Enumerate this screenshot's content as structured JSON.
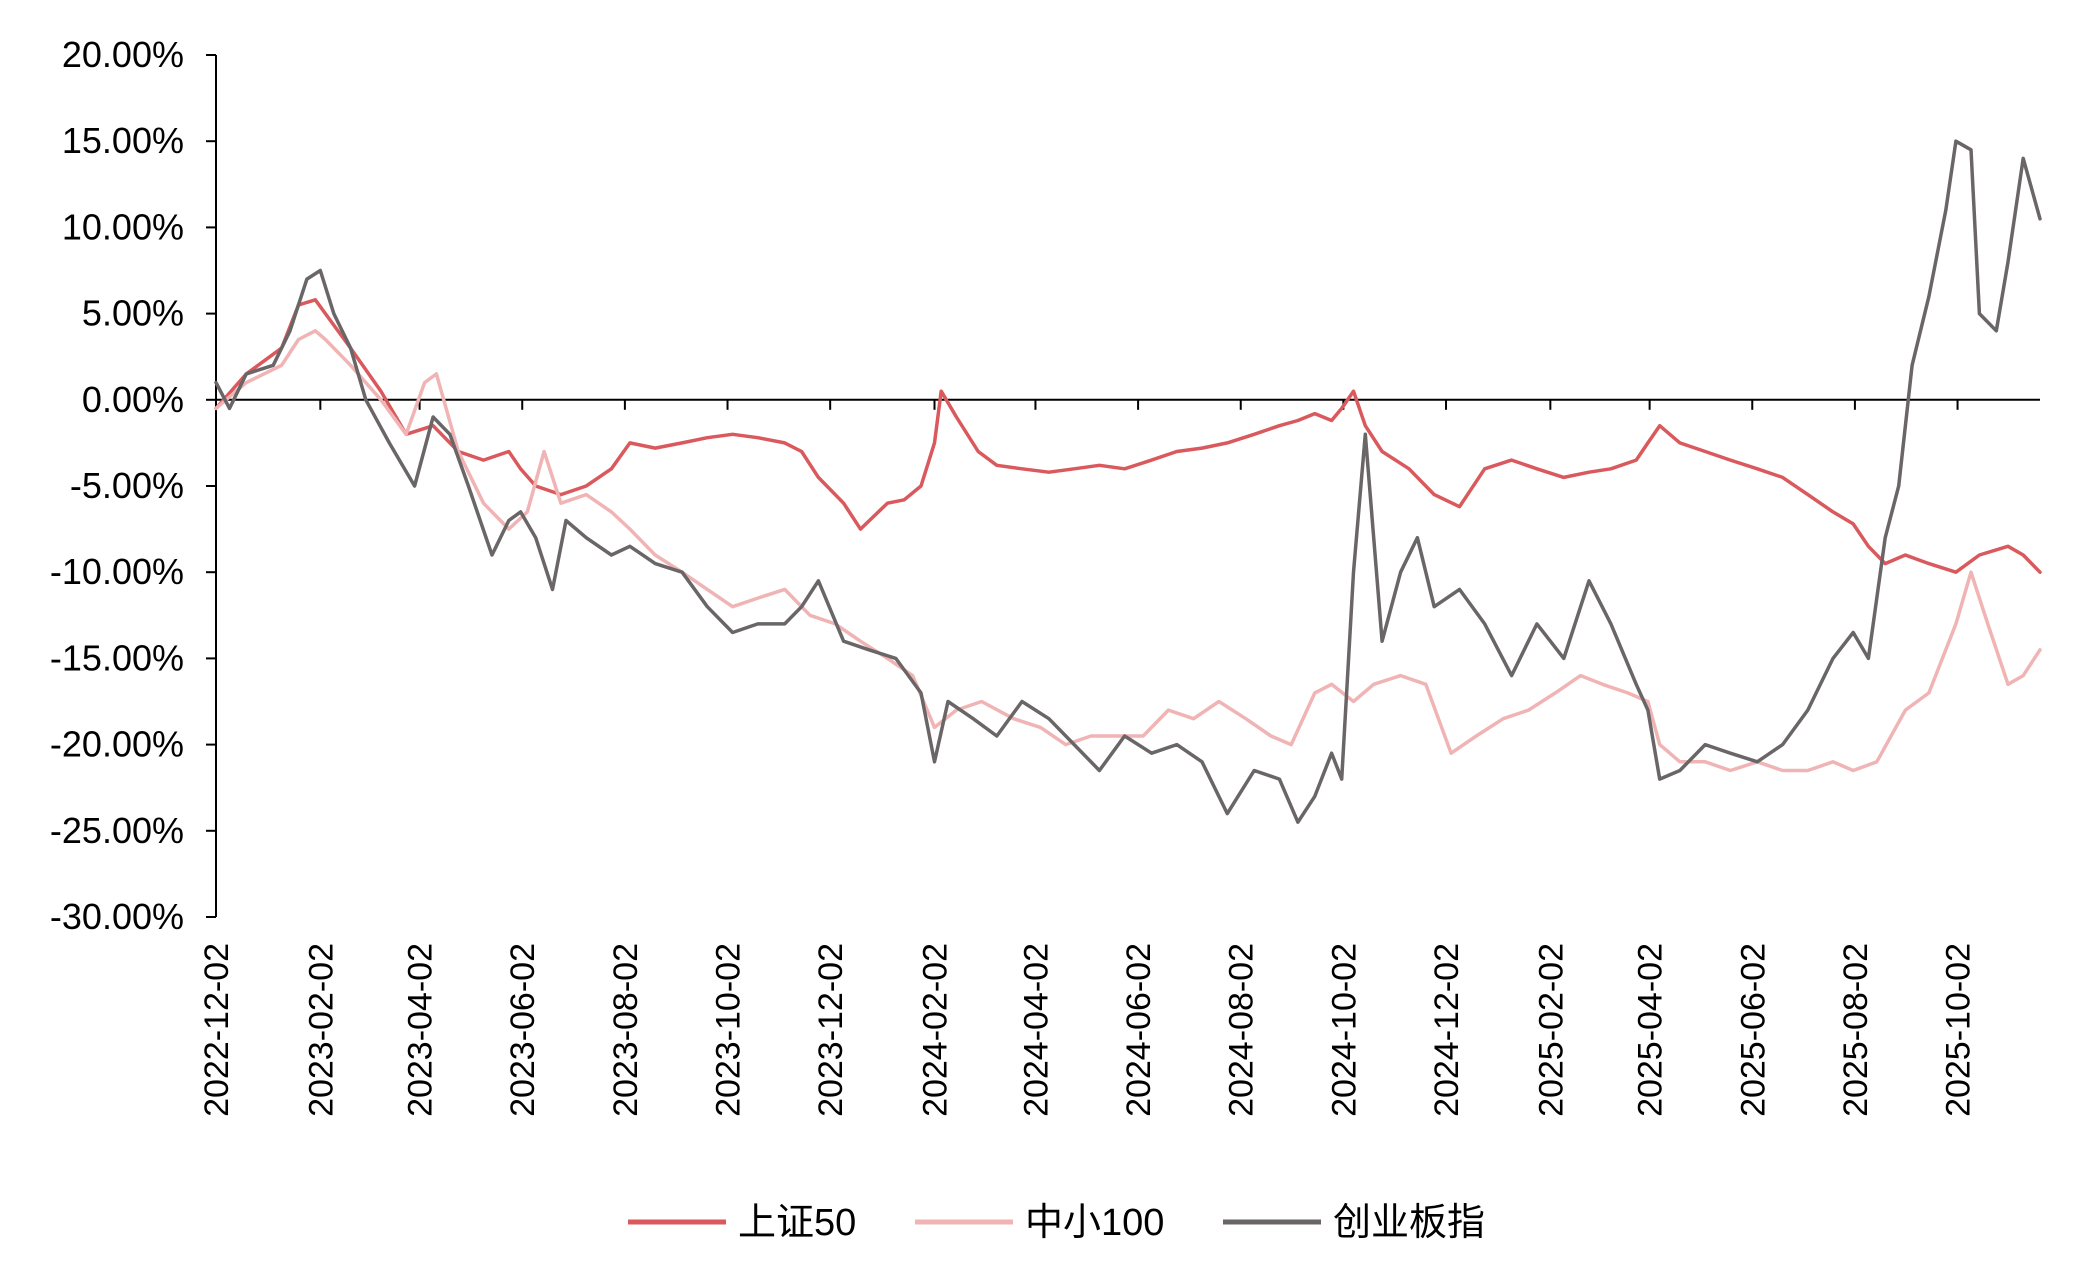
{
  "chart_data": {
    "type": "line",
    "title": "",
    "xlabel": "",
    "ylabel": "",
    "ylim": [
      -0.3,
      0.2
    ],
    "yticks": [
      0.2,
      0.15,
      0.1,
      0.05,
      0.0,
      -0.05,
      -0.1,
      -0.15,
      -0.2,
      -0.25,
      -0.3
    ],
    "ytick_labels": [
      "20.00%",
      "15.00%",
      "10.00%",
      "5.00%",
      "0.00%",
      "-5.00%",
      "-10.00%",
      "-15.00%",
      "-20.00%",
      "-25.00%",
      "-30.00%"
    ],
    "xlim": [
      "2022-12-02",
      "2025-11-20"
    ],
    "xtick_labels": [
      "2022-12-02",
      "2023-02-02",
      "2023-04-02",
      "2023-06-02",
      "2023-08-02",
      "2023-10-02",
      "2023-12-02",
      "2024-02-02",
      "2024-04-02",
      "2024-06-02",
      "2024-08-02",
      "2024-10-02",
      "2024-12-02",
      "2025-02-02",
      "2025-04-02",
      "2025-06-02",
      "2025-08-02",
      "2025-10-02"
    ],
    "legend_position": "bottom",
    "series": [
      {
        "name": "上证50",
        "color": "#d9595c",
        "x": [
          "2022-12-02",
          "2022-12-20",
          "2023-01-10",
          "2023-01-20",
          "2023-01-30",
          "2023-02-05",
          "2023-02-20",
          "2023-03-10",
          "2023-03-25",
          "2023-04-10",
          "2023-04-25",
          "2023-05-10",
          "2023-05-25",
          "2023-06-01",
          "2023-06-10",
          "2023-06-25",
          "2023-07-10",
          "2023-07-25",
          "2023-08-05",
          "2023-08-20",
          "2023-09-05",
          "2023-09-20",
          "2023-10-05",
          "2023-10-20",
          "2023-11-05",
          "2023-11-15",
          "2023-11-25",
          "2023-12-10",
          "2023-12-20",
          "2024-01-05",
          "2024-01-15",
          "2024-01-25",
          "2024-02-02",
          "2024-02-06",
          "2024-02-15",
          "2024-02-28",
          "2024-03-10",
          "2024-03-25",
          "2024-04-10",
          "2024-04-25",
          "2024-05-10",
          "2024-05-25",
          "2024-06-10",
          "2024-06-25",
          "2024-07-10",
          "2024-07-25",
          "2024-08-10",
          "2024-08-25",
          "2024-09-05",
          "2024-09-15",
          "2024-09-25",
          "2024-10-01",
          "2024-10-08",
          "2024-10-15",
          "2024-10-25",
          "2024-11-10",
          "2024-11-25",
          "2024-12-10",
          "2024-12-25",
          "2025-01-10",
          "2025-01-25",
          "2025-02-10",
          "2025-02-25",
          "2025-03-10",
          "2025-03-25",
          "2025-04-01",
          "2025-04-08",
          "2025-04-20",
          "2025-05-05",
          "2025-05-20",
          "2025-06-05",
          "2025-06-20",
          "2025-07-05",
          "2025-07-20",
          "2025-08-01",
          "2025-08-10",
          "2025-08-20",
          "2025-09-01",
          "2025-09-15",
          "2025-10-01",
          "2025-10-15",
          "2025-11-01",
          "2025-11-10",
          "2025-11-20"
        ],
        "values": [
          -0.005,
          0.015,
          0.03,
          0.055,
          0.058,
          0.05,
          0.03,
          0.005,
          -0.02,
          -0.015,
          -0.03,
          -0.035,
          -0.03,
          -0.04,
          -0.05,
          -0.055,
          -0.05,
          -0.04,
          -0.025,
          -0.028,
          -0.025,
          -0.022,
          -0.02,
          -0.022,
          -0.025,
          -0.03,
          -0.045,
          -0.06,
          -0.075,
          -0.06,
          -0.058,
          -0.05,
          -0.025,
          0.005,
          -0.01,
          -0.03,
          -0.038,
          -0.04,
          -0.042,
          -0.04,
          -0.038,
          -0.04,
          -0.035,
          -0.03,
          -0.028,
          -0.025,
          -0.02,
          -0.015,
          -0.012,
          -0.008,
          -0.012,
          -0.005,
          0.005,
          -0.015,
          -0.03,
          -0.04,
          -0.055,
          -0.062,
          -0.04,
          -0.035,
          -0.04,
          -0.045,
          -0.042,
          -0.04,
          -0.035,
          -0.025,
          -0.015,
          -0.025,
          -0.03,
          -0.035,
          -0.04,
          -0.045,
          -0.055,
          -0.065,
          -0.072,
          -0.085,
          -0.095,
          -0.09,
          -0.095,
          -0.1,
          -0.09,
          -0.085,
          -0.09,
          -0.1
        ]
      },
      {
        "name": "中小100",
        "color": "#f0b4b5",
        "x": [
          "2022-12-02",
          "2022-12-20",
          "2023-01-10",
          "2023-01-20",
          "2023-01-30",
          "2023-02-05",
          "2023-02-20",
          "2023-03-10",
          "2023-03-25",
          "2023-04-05",
          "2023-04-12",
          "2023-04-25",
          "2023-05-10",
          "2023-05-25",
          "2023-06-05",
          "2023-06-15",
          "2023-06-25",
          "2023-07-10",
          "2023-07-25",
          "2023-08-05",
          "2023-08-20",
          "2023-09-05",
          "2023-09-20",
          "2023-10-05",
          "2023-10-20",
          "2023-11-05",
          "2023-11-20",
          "2023-12-05",
          "2023-12-20",
          "2024-01-05",
          "2024-01-20",
          "2024-02-02",
          "2024-02-15",
          "2024-03-01",
          "2024-03-20",
          "2024-04-05",
          "2024-04-20",
          "2024-05-05",
          "2024-05-20",
          "2024-06-05",
          "2024-06-20",
          "2024-07-05",
          "2024-07-20",
          "2024-08-05",
          "2024-08-20",
          "2024-09-01",
          "2024-09-15",
          "2024-09-25",
          "2024-10-08",
          "2024-10-20",
          "2024-11-05",
          "2024-11-20",
          "2024-12-05",
          "2024-12-20",
          "2025-01-05",
          "2025-01-20",
          "2025-02-05",
          "2025-02-20",
          "2025-03-05",
          "2025-03-20",
          "2025-04-01",
          "2025-04-08",
          "2025-04-20",
          "2025-05-05",
          "2025-05-20",
          "2025-06-05",
          "2025-06-20",
          "2025-07-05",
          "2025-07-20",
          "2025-08-01",
          "2025-08-15",
          "2025-09-01",
          "2025-09-15",
          "2025-10-01",
          "2025-10-10",
          "2025-10-20",
          "2025-11-01",
          "2025-11-10",
          "2025-11-20"
        ],
        "values": [
          -0.005,
          0.01,
          0.02,
          0.035,
          0.04,
          0.035,
          0.02,
          0.0,
          -0.02,
          0.01,
          0.015,
          -0.03,
          -0.06,
          -0.075,
          -0.065,
          -0.03,
          -0.06,
          -0.055,
          -0.065,
          -0.075,
          -0.09,
          -0.1,
          -0.11,
          -0.12,
          -0.115,
          -0.11,
          -0.125,
          -0.13,
          -0.14,
          -0.15,
          -0.16,
          -0.19,
          -0.18,
          -0.175,
          -0.185,
          -0.19,
          -0.2,
          -0.195,
          -0.195,
          -0.195,
          -0.18,
          -0.185,
          -0.175,
          -0.185,
          -0.195,
          -0.2,
          -0.17,
          -0.165,
          -0.175,
          -0.165,
          -0.16,
          -0.165,
          -0.205,
          -0.195,
          -0.185,
          -0.18,
          -0.17,
          -0.16,
          -0.165,
          -0.17,
          -0.175,
          -0.2,
          -0.21,
          -0.21,
          -0.215,
          -0.21,
          -0.215,
          -0.215,
          -0.21,
          -0.215,
          -0.21,
          -0.18,
          -0.17,
          -0.13,
          -0.1,
          -0.13,
          -0.165,
          -0.16,
          -0.145
        ]
      },
      {
        "name": "创业板指",
        "color": "#6a6668",
        "x": [
          "2022-12-02",
          "2022-12-10",
          "2022-12-20",
          "2023-01-05",
          "2023-01-15",
          "2023-01-25",
          "2023-02-02",
          "2023-02-10",
          "2023-02-20",
          "2023-03-01",
          "2023-03-15",
          "2023-03-30",
          "2023-04-10",
          "2023-04-20",
          "2023-05-01",
          "2023-05-15",
          "2023-05-25",
          "2023-06-01",
          "2023-06-10",
          "2023-06-20",
          "2023-06-28",
          "2023-07-10",
          "2023-07-25",
          "2023-08-05",
          "2023-08-20",
          "2023-09-05",
          "2023-09-20",
          "2023-10-05",
          "2023-10-20",
          "2023-11-05",
          "2023-11-15",
          "2023-11-25",
          "2023-12-10",
          "2023-12-25",
          "2024-01-10",
          "2024-01-25",
          "2024-02-02",
          "2024-02-10",
          "2024-02-25",
          "2024-03-10",
          "2024-03-25",
          "2024-04-10",
          "2024-04-25",
          "2024-05-10",
          "2024-05-25",
          "2024-06-10",
          "2024-06-25",
          "2024-07-10",
          "2024-07-25",
          "2024-08-10",
          "2024-08-25",
          "2024-09-05",
          "2024-09-15",
          "2024-09-25",
          "2024-10-01",
          "2024-10-08",
          "2024-10-15",
          "2024-10-25",
          "2024-11-05",
          "2024-11-15",
          "2024-11-25",
          "2024-12-10",
          "2024-12-25",
          "2025-01-10",
          "2025-01-25",
          "2025-02-10",
          "2025-02-25",
          "2025-03-10",
          "2025-03-25",
          "2025-04-01",
          "2025-04-08",
          "2025-04-20",
          "2025-05-05",
          "2025-05-20",
          "2025-06-05",
          "2025-06-20",
          "2025-07-05",
          "2025-07-20",
          "2025-08-01",
          "2025-08-10",
          "2025-08-20",
          "2025-08-28",
          "2025-09-05",
          "2025-09-15",
          "2025-09-25",
          "2025-10-01",
          "2025-10-10",
          "2025-10-15",
          "2025-10-25",
          "2025-11-01",
          "2025-11-10",
          "2025-11-20"
        ],
        "values": [
          0.01,
          -0.005,
          0.015,
          0.02,
          0.04,
          0.07,
          0.075,
          0.05,
          0.03,
          0.0,
          -0.025,
          -0.05,
          -0.01,
          -0.02,
          -0.05,
          -0.09,
          -0.07,
          -0.065,
          -0.08,
          -0.11,
          -0.07,
          -0.08,
          -0.09,
          -0.085,
          -0.095,
          -0.1,
          -0.12,
          -0.135,
          -0.13,
          -0.13,
          -0.12,
          -0.105,
          -0.14,
          -0.145,
          -0.15,
          -0.17,
          -0.21,
          -0.175,
          -0.185,
          -0.195,
          -0.175,
          -0.185,
          -0.2,
          -0.215,
          -0.195,
          -0.205,
          -0.2,
          -0.21,
          -0.24,
          -0.215,
          -0.22,
          -0.245,
          -0.23,
          -0.205,
          -0.22,
          -0.1,
          -0.02,
          -0.14,
          -0.1,
          -0.08,
          -0.12,
          -0.11,
          -0.13,
          -0.16,
          -0.13,
          -0.15,
          -0.105,
          -0.13,
          -0.165,
          -0.18,
          -0.22,
          -0.215,
          -0.2,
          -0.205,
          -0.21,
          -0.2,
          -0.18,
          -0.15,
          -0.135,
          -0.15,
          -0.08,
          -0.05,
          0.02,
          0.06,
          0.11,
          0.15,
          0.145,
          0.05,
          0.04,
          0.08,
          0.14,
          0.105
        ]
      }
    ]
  }
}
